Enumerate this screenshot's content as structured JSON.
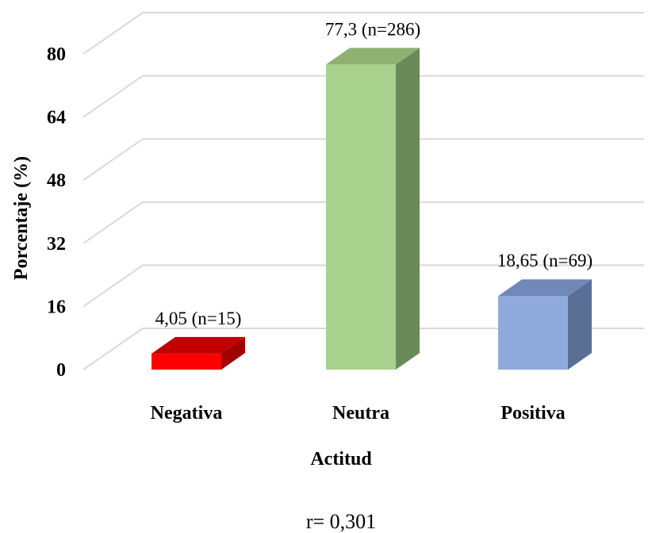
{
  "chart_data": {
    "type": "bar",
    "style": "3d-column",
    "categories": [
      "Negativa",
      "Neutra",
      "Positiva"
    ],
    "values": [
      4.05,
      77.3,
      18.65
    ],
    "data_labels": [
      "4,05 (n=15)",
      "77,3 (n=286)",
      "18,65 (n=69)"
    ],
    "colors": [
      {
        "front": "#ff0000",
        "top": "#c00000",
        "side": "#a00000"
      },
      {
        "front": "#a9d18e",
        "top": "#8fb070",
        "side": "#6b8a5a"
      },
      {
        "front": "#8faadc",
        "top": "#6f88b8",
        "side": "#5b6f96"
      }
    ],
    "yticks": [
      "0",
      "16",
      "32",
      "48",
      "64",
      "80"
    ],
    "ylim": [
      0,
      80
    ],
    "xlabel": "Actitud",
    "ylabel": "Porcentaje (%)",
    "grid": true
  },
  "note": "r= 0,301"
}
